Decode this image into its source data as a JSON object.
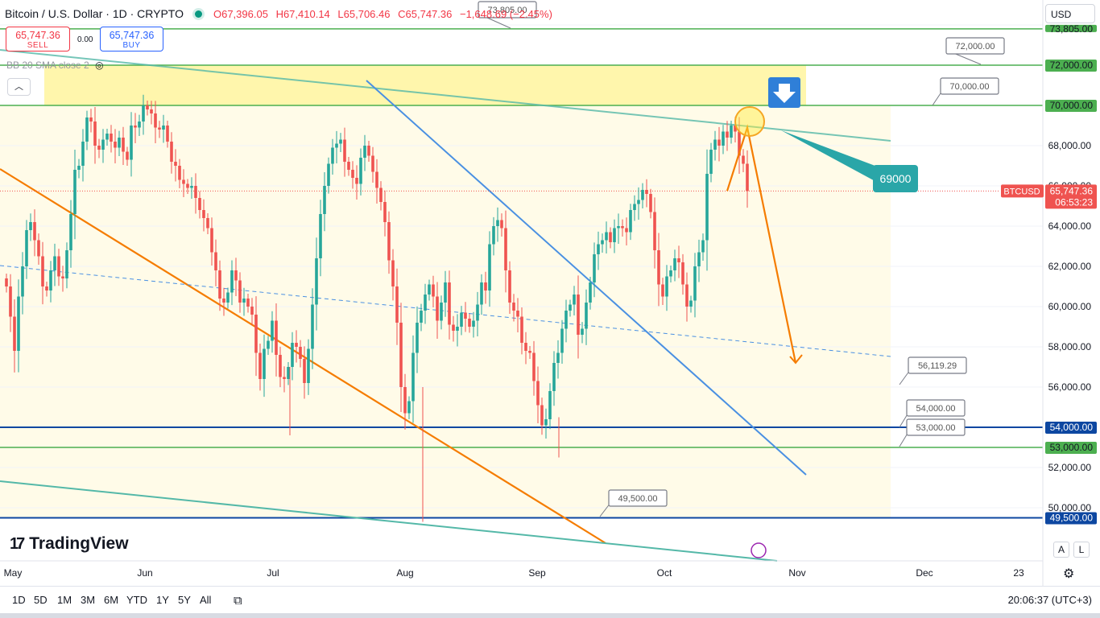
{
  "header": {
    "symbol": "Bitcoin / U.S. Dollar · 1D · CRYPTO",
    "open": "O67,396.05",
    "high": "H67,410.14",
    "low": "L65,706.46",
    "close": "C65,747.36",
    "change": "−1,648.69 (−2.45%)"
  },
  "trade": {
    "sell_price": "65,747.36",
    "sell_label": "SELL",
    "spread": "0.00",
    "buy_price": "65,747.36",
    "buy_label": "BUY"
  },
  "indicator": {
    "label": "BB 20 SMA close 2"
  },
  "currency": "USD",
  "brand": "TradingView",
  "timeframes": [
    "1D",
    "5D",
    "1M",
    "3M",
    "6M",
    "YTD",
    "1Y",
    "5Y",
    "All"
  ],
  "clock": "20:06:37 (UTC+3)",
  "colors": {
    "up": "#26a69a",
    "down": "#ef5350",
    "green_level": "#4caf50",
    "blue_level": "#0d47a1",
    "orange": "#f57c00",
    "trend_blue": "#4a90e2",
    "teal": "#54b8a8",
    "callout": "#2aa6a8",
    "zone": "#fff59d",
    "range_bg": "#fffbe8"
  },
  "chart_data": {
    "type": "candlestick",
    "symbol_tag": "BTCUSD",
    "last_price": 65747.36,
    "last_price_label": "65,747.36",
    "countdown": "06:53:23",
    "ylim": [
      48000,
      74600
    ],
    "y_ticks": [
      "50,000.00",
      "52,000.00",
      "56,000.00",
      "58,000.00",
      "60,000.00",
      "62,000.00",
      "64,000.00",
      "66,000.00",
      "68,000.00"
    ],
    "x_ticks": [
      "May",
      "Jun",
      "Jul",
      "Aug",
      "Sep",
      "Oct",
      "Nov",
      "Dec",
      "23"
    ],
    "levels": [
      {
        "value": 73805,
        "label": "73,805.00",
        "color": "green"
      },
      {
        "value": 72000,
        "label": "72,000.00",
        "color": "green"
      },
      {
        "value": 70000,
        "label": "70,000.00",
        "color": "green"
      },
      {
        "value": 54000,
        "label": "54,000.00",
        "color": "blue"
      },
      {
        "value": 53000,
        "label": "53,000.00",
        "color": "green"
      },
      {
        "value": 49500,
        "label": "49,500.00",
        "color": "blue"
      }
    ],
    "callouts": [
      "73,805.00",
      "72,000.00",
      "70,000.00",
      "56,119.29",
      "54,000.00",
      "53,000.00",
      "49,500.00"
    ],
    "target_label": "69000",
    "closes": [
      61000,
      59500,
      57800,
      60500,
      62000,
      63800,
      64200,
      63300,
      62500,
      61000,
      60800,
      61800,
      62500,
      61500,
      61400,
      62800,
      64600,
      66800,
      67000,
      68200,
      69400,
      69200,
      68000,
      67800,
      68300,
      68600,
      68200,
      67900,
      68400,
      67700,
      67300,
      69000,
      68900,
      69200,
      70000,
      69800,
      69600,
      68900,
      68800,
      69000,
      68200,
      67200,
      67000,
      66300,
      66100,
      65900,
      66000,
      65400,
      64800,
      64400,
      63900,
      62700,
      61800,
      60400,
      60200,
      60700,
      61800,
      61300,
      60200,
      60400,
      60000,
      59600,
      57700,
      56400,
      57900,
      58300,
      59300,
      57600,
      56500,
      56400,
      57000,
      58200,
      58000,
      57400,
      56200,
      57900,
      60100,
      62400,
      64600,
      66000,
      67100,
      67900,
      68100,
      68300,
      67200,
      66800,
      66400,
      66100,
      67400,
      68000,
      67500,
      66700,
      65900,
      65200,
      64200,
      62300,
      61000,
      59200,
      56000,
      54700,
      55300,
      57700,
      59200,
      59800,
      60600,
      61100,
      60500,
      59300,
      60200,
      61200,
      59100,
      58800,
      59000,
      59700,
      59400,
      59000,
      59300,
      60100,
      61200,
      60800,
      63100,
      64000,
      64300,
      63900,
      61800,
      60200,
      59800,
      59500,
      58200,
      57800,
      57700,
      56300,
      55100,
      54100,
      54400,
      55800,
      57200,
      57700,
      58900,
      59800,
      60100,
      60600,
      58600,
      58900,
      60200,
      61200,
      62600,
      63100,
      63300,
      63700,
      63200,
      63900,
      64000,
      63900,
      63700,
      64800,
      65100,
      65300,
      65800,
      65600,
      64700,
      62800,
      61100,
      60500,
      61500,
      61800,
      62400,
      62200,
      61100,
      60000,
      60300,
      62000,
      62700,
      63300,
      66600,
      67800,
      68300,
      68000,
      68700,
      68400,
      69000,
      68700,
      67500,
      67100,
      65747
    ],
    "forecast": [
      [
        179,
        65747
      ],
      [
        184,
        68900
      ],
      [
        196,
        57200
      ]
    ]
  }
}
